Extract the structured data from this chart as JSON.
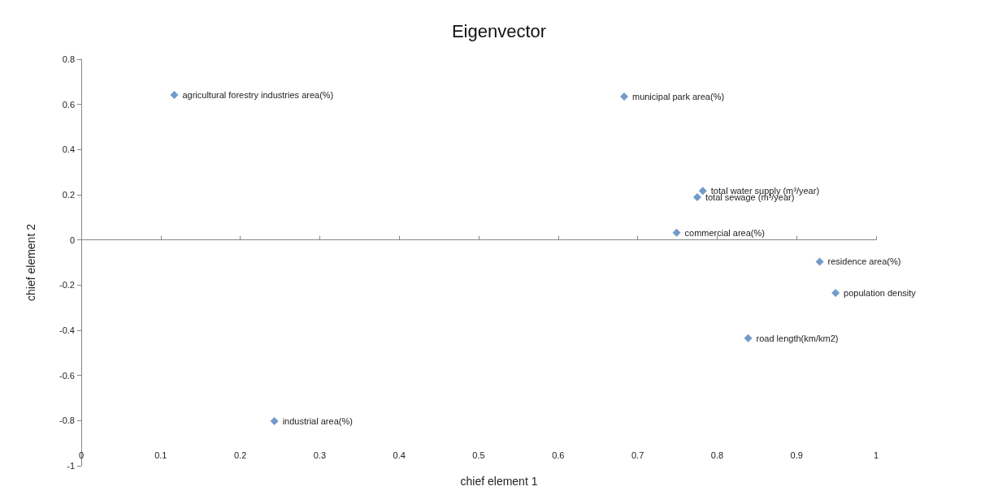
{
  "chart_data": {
    "type": "scatter",
    "title": "Eigenvector",
    "xlabel": "chief element 1",
    "ylabel": "chief element 2",
    "x": [
      0.117,
      0.683,
      0.782,
      0.775,
      0.749,
      0.929,
      0.949,
      0.839,
      0.243
    ],
    "values": [
      0.642,
      0.635,
      0.217,
      0.189,
      0.032,
      -0.096,
      -0.235,
      -0.435,
      -0.802
    ],
    "color": "#4f81bd",
    "marker": "diamond",
    "xlim": [
      0,
      1
    ],
    "xticks": [
      0,
      0.1,
      0.2,
      0.3,
      0.4,
      0.5,
      0.6,
      0.7,
      0.8,
      0.9,
      1
    ],
    "ylim": [
      -1,
      0.8
    ],
    "yticks": [
      -1,
      -0.8,
      -0.6,
      -0.4,
      -0.2,
      0,
      0.2,
      0.4,
      0.6,
      0.8
    ],
    "annotations": [
      {
        "text": "agricultural forestry industries area(%)",
        "x": 0.117,
        "y": 0.642
      },
      {
        "text": "municipal park area(%)",
        "x": 0.683,
        "y": 0.635
      },
      {
        "text": "total water supply (m³/year)",
        "x": 0.782,
        "y": 0.217
      },
      {
        "text": "total sewage (m³/year)",
        "x": 0.775,
        "y": 0.189
      },
      {
        "text": "commercial area(%)",
        "x": 0.749,
        "y": 0.032
      },
      {
        "text": "residence area(%)",
        "x": 0.929,
        "y": -0.096
      },
      {
        "text": "population density",
        "x": 0.949,
        "y": -0.235
      },
      {
        "text": "road length(km/km2)",
        "x": 0.839,
        "y": -0.435
      },
      {
        "text": "industrial area(%)",
        "x": 0.243,
        "y": -0.802
      }
    ]
  }
}
